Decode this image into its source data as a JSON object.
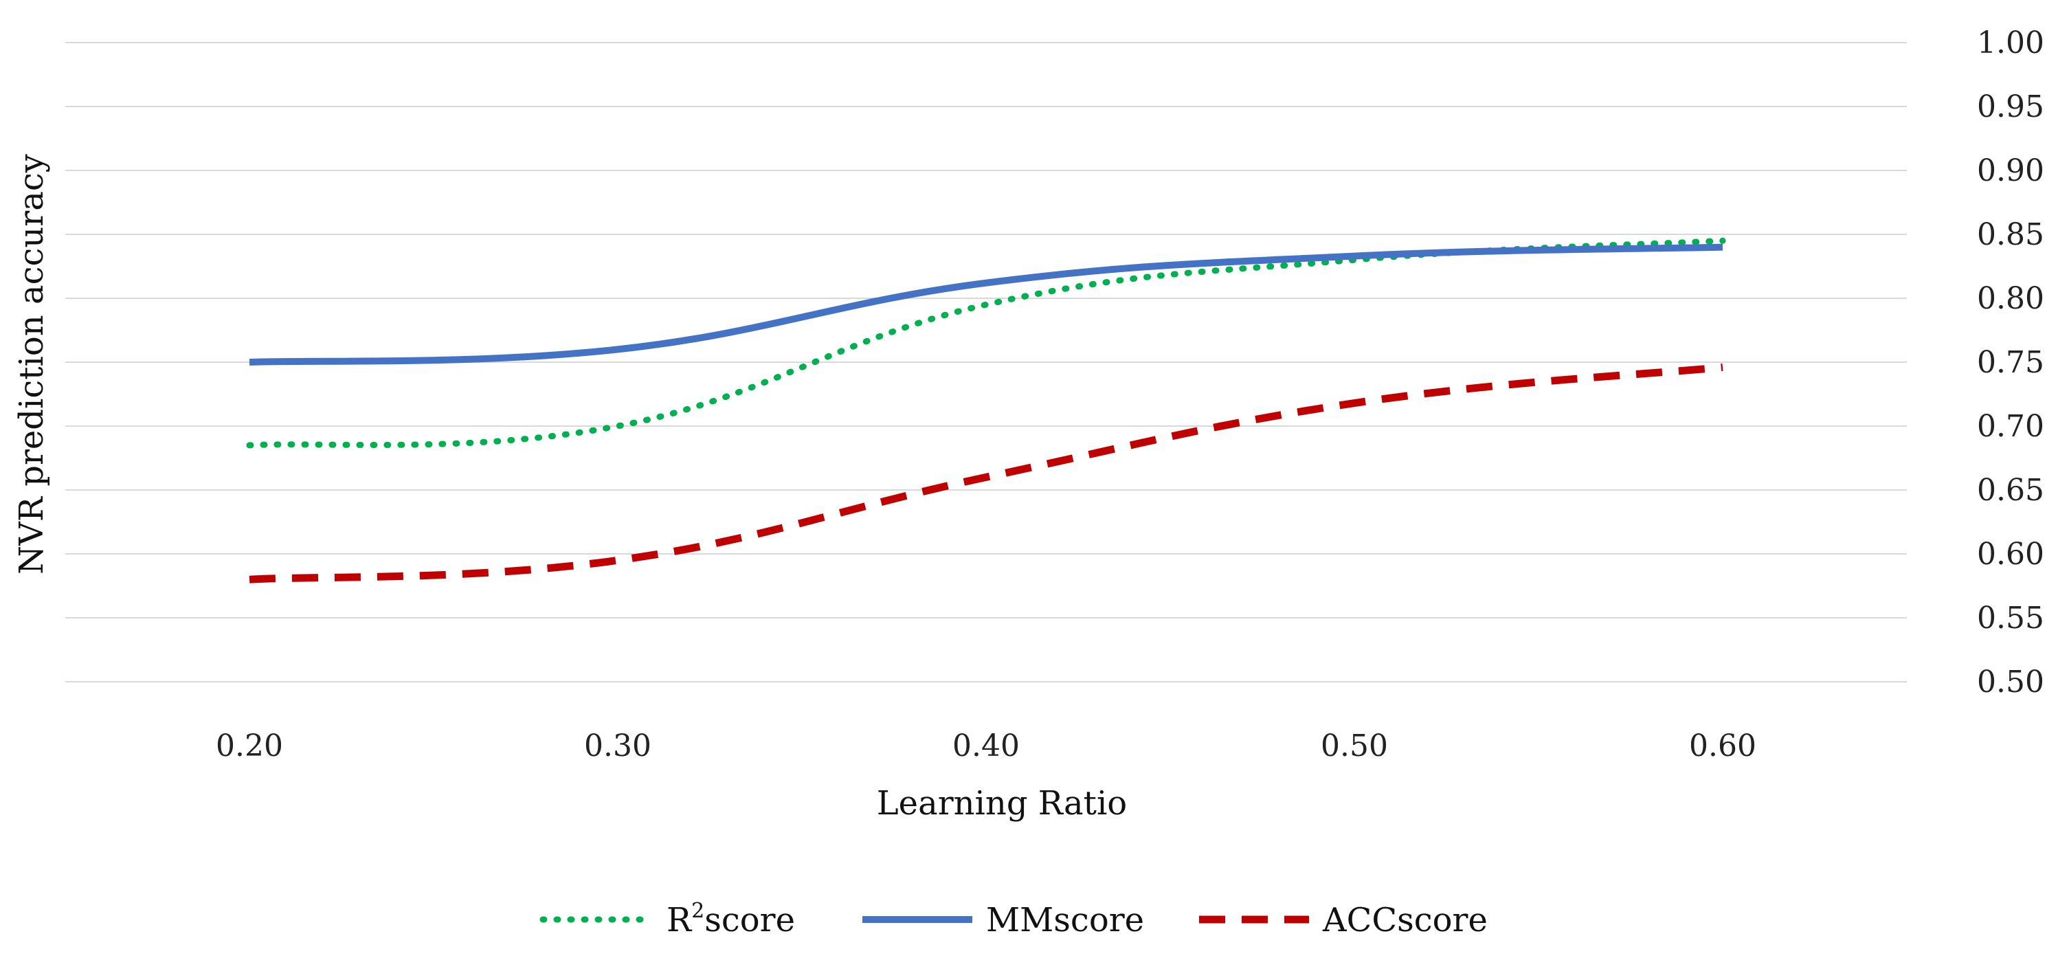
{
  "chart_data": {
    "type": "line",
    "title": "",
    "xlabel": "Learning Ratio",
    "ylabel": "NVR prediction accuracy",
    "x": [
      0.2,
      0.3,
      0.4,
      0.5,
      0.6
    ],
    "x_tick_labels": [
      "0.20",
      "0.30",
      "0.40",
      "0.50",
      "0.60"
    ],
    "xlim": [
      0.15,
      0.65
    ],
    "ylim": [
      0.5,
      1.0
    ],
    "y_ticks": [
      0.5,
      0.55,
      0.6,
      0.65,
      0.7,
      0.75,
      0.8,
      0.85,
      0.9,
      0.95,
      1.0
    ],
    "y_tick_labels": [
      "0.50",
      "0.55",
      "0.60",
      "0.65",
      "0.70",
      "0.75",
      "0.80",
      "0.85",
      "0.90",
      "0.95",
      "1.00"
    ],
    "y_axis_side": "right",
    "grid": true,
    "smooth": true,
    "legend_position": "bottom-center",
    "series": [
      {
        "name": "R2score",
        "legend_base": "R",
        "legend_sup": "2",
        "legend_suffix": "score",
        "values": [
          0.685,
          0.7,
          0.795,
          0.83,
          0.845
        ],
        "color": "#00b050",
        "style": "dotted"
      },
      {
        "name": "MMscore",
        "legend_base": "MMscore",
        "legend_sup": "",
        "legend_suffix": "",
        "values": [
          0.75,
          0.76,
          0.812,
          0.833,
          0.84
        ],
        "color": "#4472c4",
        "style": "solid"
      },
      {
        "name": "ACCscore",
        "legend_base": "ACCscore",
        "legend_sup": "",
        "legend_suffix": "",
        "values": [
          0.58,
          0.595,
          0.66,
          0.718,
          0.746
        ],
        "color": "#c00000",
        "style": "dashed"
      }
    ]
  }
}
